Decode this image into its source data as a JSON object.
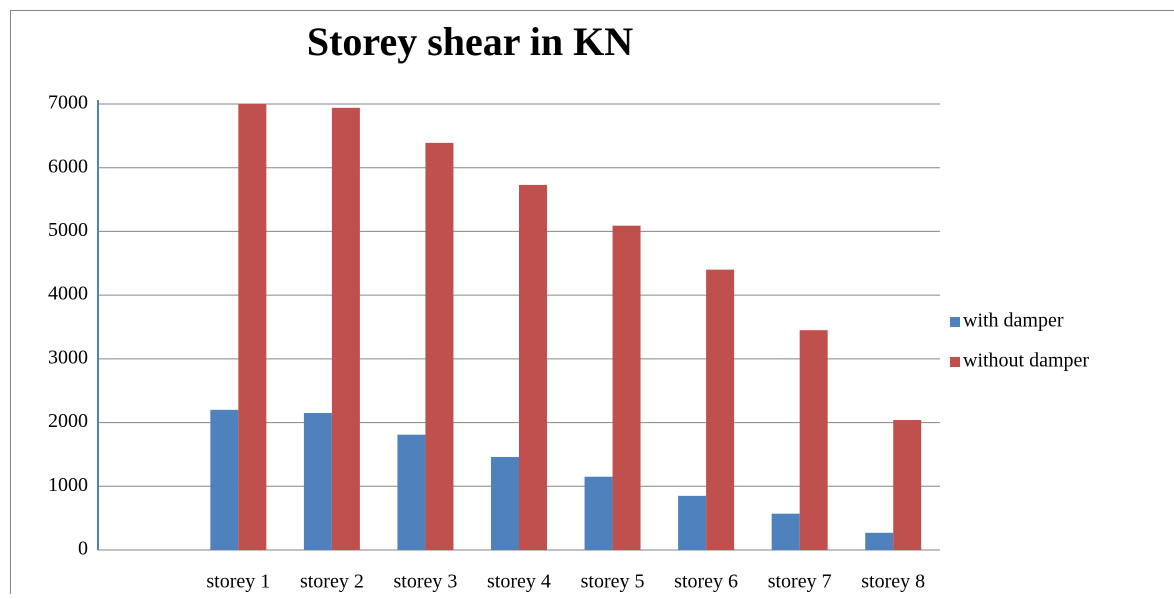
{
  "chart_data": {
    "type": "bar",
    "title": "Storey shear in KN",
    "categories": [
      null,
      "storey 1",
      "storey 2",
      "storey 3",
      "storey 4",
      "storey 5",
      "storey 6",
      "storey 7",
      "storey 8"
    ],
    "series": [
      {
        "name": "with damper",
        "color": "#4f81bd",
        "values": [
          null,
          2200,
          2150,
          1810,
          1460,
          1150,
          850,
          570,
          270
        ]
      },
      {
        "name": "without damper",
        "color": "#c0504d",
        "values": [
          null,
          7000,
          6940,
          6390,
          5730,
          5090,
          4400,
          3450,
          2040
        ]
      }
    ],
    "ylim": [
      0,
      7000
    ],
    "yticks": [
      0,
      1000,
      2000,
      3000,
      4000,
      5000,
      6000,
      7000
    ],
    "grid": true,
    "legend": "right"
  }
}
